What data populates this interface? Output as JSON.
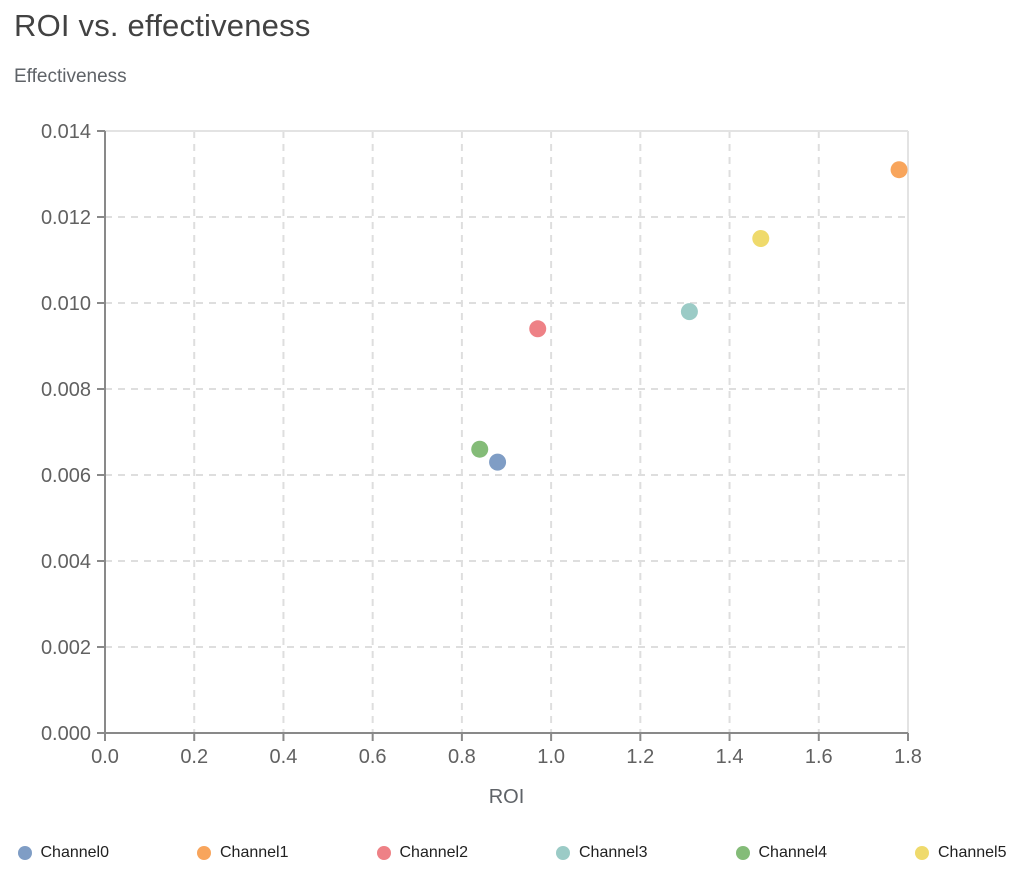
{
  "chart_data": {
    "type": "scatter",
    "title": "ROI vs. effectiveness",
    "ylabel": "Effectiveness",
    "xlabel": "ROI",
    "xlim": [
      0,
      1.8
    ],
    "ylim": [
      0,
      0.014
    ],
    "x_ticks": [
      0,
      0.2,
      0.4,
      0.6,
      0.8,
      1.0,
      1.2,
      1.4,
      1.6,
      1.8
    ],
    "x_tick_labels": [
      "0.0",
      "0.2",
      "0.4",
      "0.6",
      "0.8",
      "1.0",
      "1.2",
      "1.4",
      "1.6",
      "1.8"
    ],
    "y_ticks": [
      0,
      0.002,
      0.004,
      0.006,
      0.008,
      0.01,
      0.012,
      0.014
    ],
    "y_tick_labels": [
      "0.000",
      "0.002",
      "0.004",
      "0.006",
      "0.008",
      "0.010",
      "0.012",
      "0.014"
    ],
    "grid": "dashed",
    "legend_position": "bottom",
    "series": [
      {
        "name": "Channel0",
        "color": "#7F9DC5",
        "x": 0.88,
        "y": 0.0063
      },
      {
        "name": "Channel1",
        "color": "#F8A55C",
        "x": 1.78,
        "y": 0.0131
      },
      {
        "name": "Channel2",
        "color": "#EE8186",
        "x": 0.97,
        "y": 0.0094
      },
      {
        "name": "Channel3",
        "color": "#9BCBC6",
        "x": 1.31,
        "y": 0.0098
      },
      {
        "name": "Channel4",
        "color": "#84BC78",
        "x": 0.84,
        "y": 0.0066
      },
      {
        "name": "Channel5",
        "color": "#EFDA6C",
        "x": 1.47,
        "y": 0.0115
      }
    ]
  },
  "colors": {
    "title_text": "#424242",
    "axis_title_text": "#5F6368",
    "tick_label_text": "#616161",
    "axis_line": "#898989",
    "gridline": "#DEDEDE",
    "plot_border": "#E3E3E3",
    "legend_text": "#212121",
    "background": "#FFFFFF"
  }
}
